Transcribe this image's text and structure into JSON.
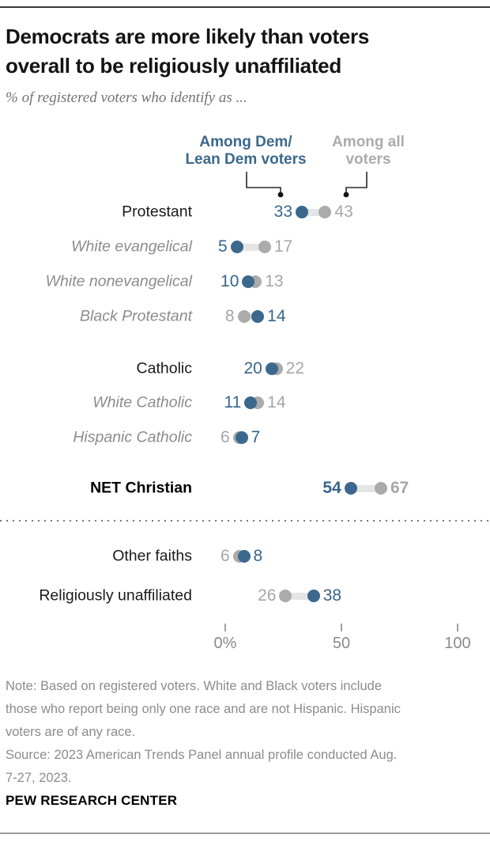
{
  "header": {
    "title_lines": [
      "Democrats are more likely than voters",
      "overall to be religiously unaffiliated"
    ],
    "subtitle": "% of registered voters who identify as ..."
  },
  "legend": {
    "dem_lines": [
      "Among Dem/",
      "Lean Dem voters"
    ],
    "all_lines": [
      "Among all",
      "voters"
    ]
  },
  "colors": {
    "dem": "#3B688C",
    "all": "#ABABAB",
    "dem_text": "#38658C",
    "all_text": "#A6A6A6",
    "band": "#E5E5E5",
    "pointer": "#2a2a2a"
  },
  "chart_data": {
    "type": "scatter",
    "subtype": "dumbbell-dot-plot",
    "title": "Democrats are more likely than voters overall to be religiously unaffiliated",
    "subtitle": "% of registered voters who identify as ...",
    "series": [
      {
        "name": "Among Dem/Lean Dem voters",
        "color": "#3B688C"
      },
      {
        "name": "Among all voters",
        "color": "#ABABAB"
      }
    ],
    "legend_position": "top",
    "grid": false,
    "xlim": [
      0,
      100
    ],
    "x_axis_ticks": [
      {
        "label": "0%",
        "value": 0
      },
      {
        "label": "50",
        "value": 50
      },
      {
        "label": "100",
        "value": 100
      }
    ],
    "rows": [
      {
        "label": "Protestant",
        "style": "main",
        "dem": 33,
        "all": 43
      },
      {
        "label": "White evangelical",
        "style": "sub",
        "dem": 5,
        "all": 17
      },
      {
        "label": "White nonevangelical",
        "style": "sub",
        "dem": 10,
        "all": 13
      },
      {
        "label": "Black Protestant",
        "style": "sub",
        "dem": 14,
        "all": 8
      },
      {
        "label": "Catholic",
        "style": "main",
        "dem": 20,
        "all": 22
      },
      {
        "label": "White Catholic",
        "style": "sub",
        "dem": 11,
        "all": 14
      },
      {
        "label": "Hispanic Catholic",
        "style": "sub",
        "dem": 7,
        "all": 6
      },
      {
        "label": "NET Christian",
        "style": "net",
        "dem": 54,
        "all": 67
      },
      {
        "label": "Other faiths",
        "style": "main",
        "dem": 8,
        "all": 6
      },
      {
        "label": "Religiously unaffiliated",
        "style": "main",
        "dem": 38,
        "all": 26
      }
    ]
  },
  "footer": {
    "note_lines": [
      "Note: Based on registered voters. White and Black voters include",
      "those who report being only one race and are not Hispanic. Hispanic",
      "voters are of any race."
    ],
    "source_lines": [
      "Source: 2023 American Trends Panel annual profile conducted Aug.",
      "7-27, 2023."
    ],
    "brand": "PEW RESEARCH CENTER"
  }
}
